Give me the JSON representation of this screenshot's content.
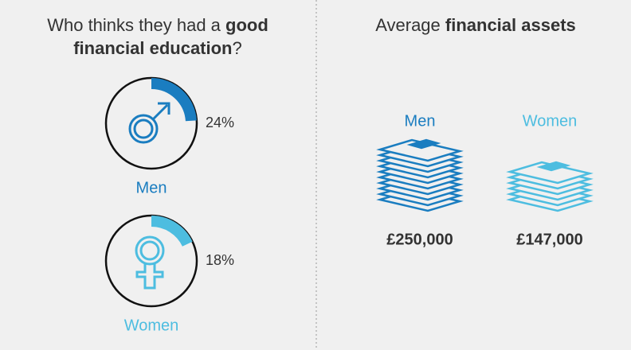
{
  "chart_data": [
    {
      "type": "radial",
      "title_parts": [
        "Who thinks they had a ",
        "good",
        "financial education",
        "?"
      ],
      "categories": [
        "Men",
        "Women"
      ],
      "values": [
        24,
        18
      ],
      "value_labels": [
        "24%",
        "18%"
      ],
      "colors": [
        "#1a7dc0",
        "#4dbde0"
      ]
    },
    {
      "type": "stack",
      "title_parts": [
        "Average ",
        "financial assets"
      ],
      "categories": [
        "Men",
        "Women"
      ],
      "values": [
        250000,
        147000
      ],
      "value_labels": [
        "£250,000",
        "£147,000"
      ],
      "colors": [
        "#1a7dc0",
        "#4dbde0"
      ]
    }
  ]
}
